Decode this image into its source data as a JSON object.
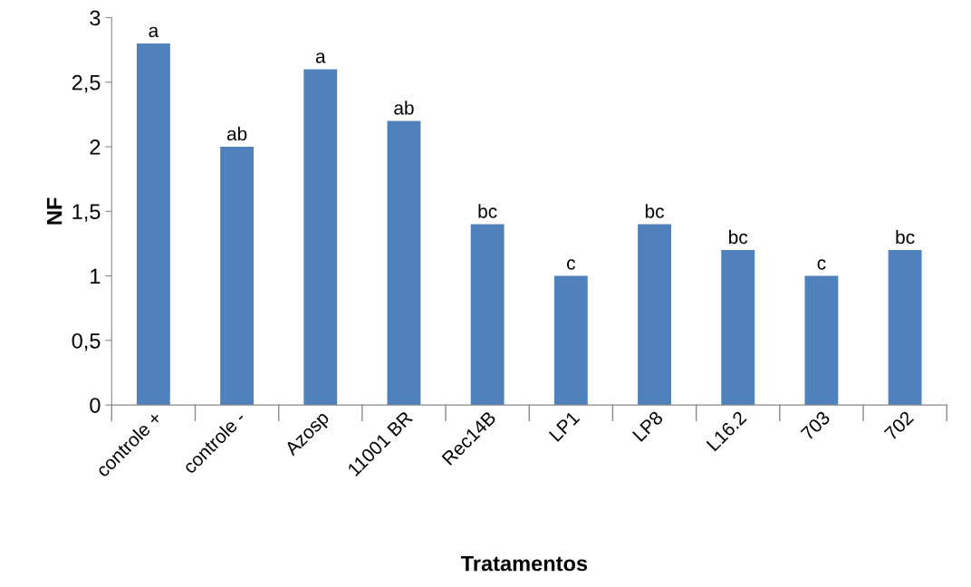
{
  "chart_data": {
    "type": "bar",
    "xlabel": "Tratamentos",
    "ylabel": "NF",
    "categories": [
      "controle +",
      "controle -",
      "Azosp",
      "11001 BR",
      "Rec14B",
      "LP1",
      "LP8",
      "L16.2",
      "703",
      "702"
    ],
    "values": [
      2.8,
      2.0,
      2.6,
      2.2,
      1.4,
      1.0,
      1.4,
      1.2,
      1.0,
      1.2
    ],
    "value_labels": [
      "a",
      "ab",
      "a",
      "ab",
      "bc",
      "c",
      "bc",
      "bc",
      "c",
      "bc"
    ],
    "color": "#4f81bd",
    "ylim": [
      0,
      3
    ],
    "yticks": [
      0,
      {
        "value": 0.5,
        "label": "0,5"
      },
      1,
      {
        "value": 1.5,
        "label": "1,5"
      },
      2,
      {
        "value": 2.5,
        "label": "2,5"
      },
      3
    ],
    "grid": false
  }
}
